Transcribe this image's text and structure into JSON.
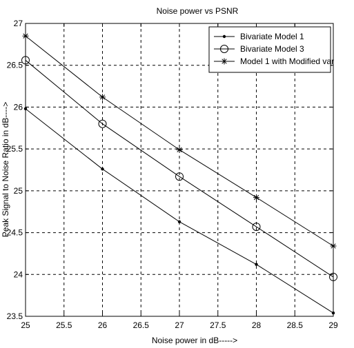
{
  "chart_data": {
    "type": "line",
    "title": "Noise power vs PSNR",
    "xlabel": "Noise power in dB----->",
    "ylabel": "Peak Signal to Noise Ratio in dB---->",
    "xlim": [
      25,
      29
    ],
    "ylim": [
      23.5,
      27
    ],
    "xticks": [
      25,
      25.5,
      26,
      26.5,
      27,
      27.5,
      28,
      28.5,
      29
    ],
    "yticks": [
      23.5,
      24,
      24.5,
      25,
      25.5,
      26,
      26.5,
      27
    ],
    "grid": true,
    "grid_style": "dashed",
    "legend_position": "top-right",
    "x": [
      25,
      26,
      27,
      28,
      29
    ],
    "series": [
      {
        "name": "Bivariate Model 1",
        "marker": "dot",
        "color": "#000000",
        "values": [
          25.98,
          25.26,
          24.63,
          24.12,
          23.54
        ]
      },
      {
        "name": "Bivariate Model 3",
        "marker": "circle",
        "color": "#000000",
        "values": [
          26.56,
          25.8,
          25.17,
          24.57,
          23.97
        ]
      },
      {
        "name": "Model 1 with Modified var",
        "marker": "star",
        "color": "#000000",
        "values": [
          26.85,
          26.12,
          25.49,
          24.92,
          24.34
        ]
      }
    ]
  }
}
